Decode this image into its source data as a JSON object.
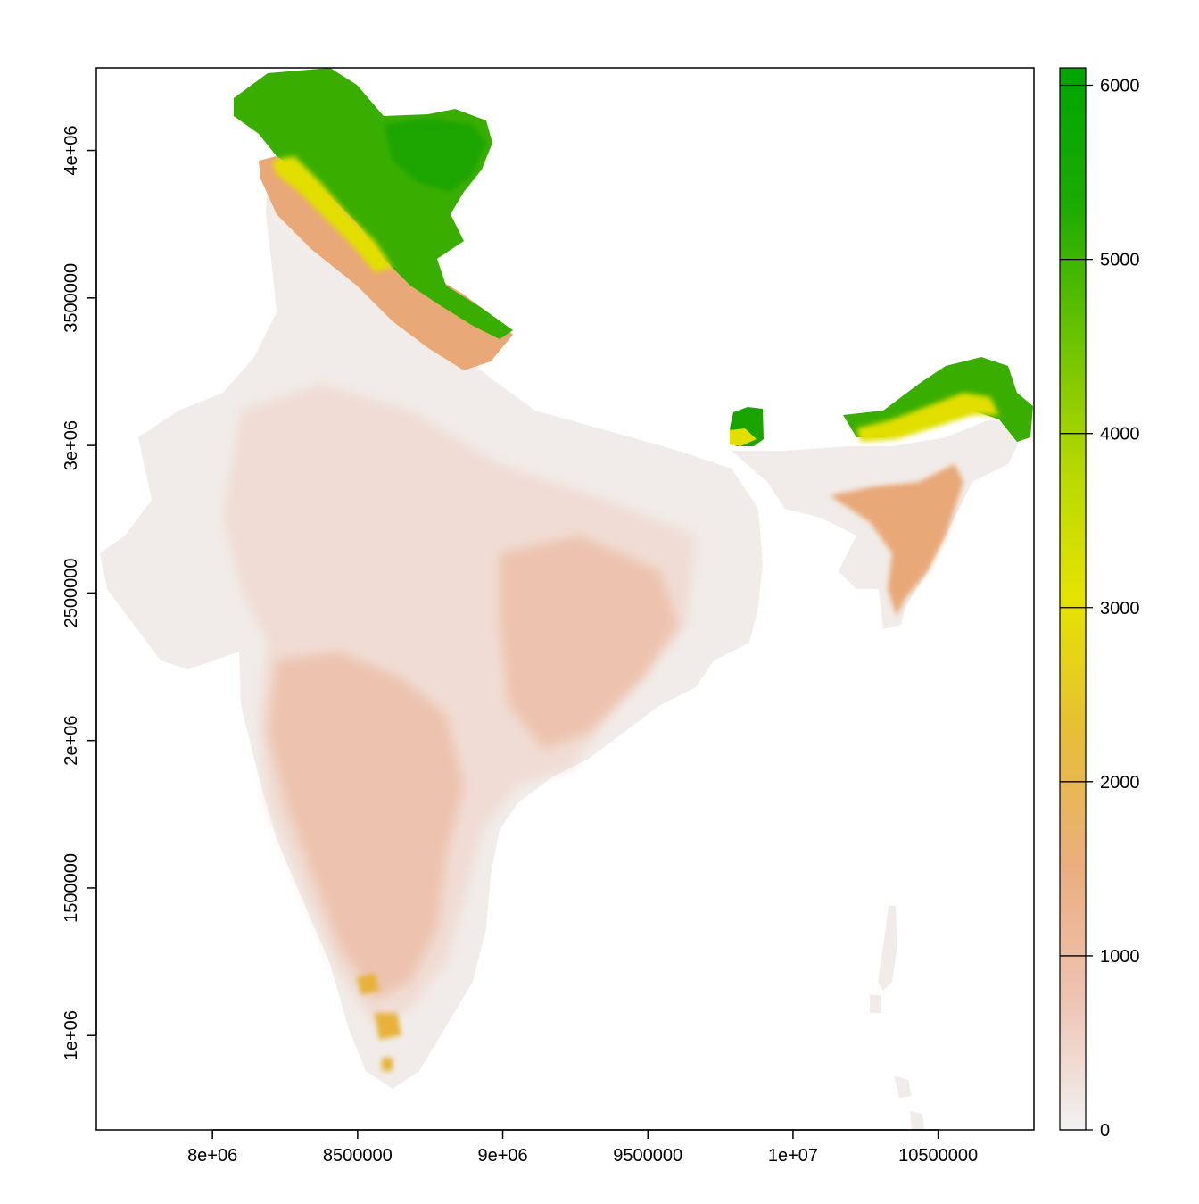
{
  "map": {
    "x_axis": {
      "range": [
        7600000,
        10830000
      ],
      "ticks": [
        {
          "value": 8000000,
          "label": "8e+06"
        },
        {
          "value": 8500000,
          "label": "8500000"
        },
        {
          "value": 9000000,
          "label": "9e+06"
        },
        {
          "value": 9500000,
          "label": "9500000"
        },
        {
          "value": 10000000,
          "label": "1e+07"
        },
        {
          "value": 10500000,
          "label": "10500000"
        }
      ]
    },
    "y_axis": {
      "range": [
        680000,
        4280000
      ],
      "ticks": [
        {
          "value": 1000000,
          "label": "1e+06"
        },
        {
          "value": 1500000,
          "label": "1500000"
        },
        {
          "value": 2000000,
          "label": "2e+06"
        },
        {
          "value": 2500000,
          "label": "2500000"
        },
        {
          "value": 3000000,
          "label": "3e+06"
        },
        {
          "value": 3500000,
          "label": "3500000"
        },
        {
          "value": 4000000,
          "label": "4e+06"
        }
      ]
    },
    "legend": {
      "range": [
        0,
        6100
      ],
      "ticks": [
        {
          "value": 0,
          "label": "0"
        },
        {
          "value": 1000,
          "label": "1000"
        },
        {
          "value": 2000,
          "label": "2000"
        },
        {
          "value": 3000,
          "label": "3000"
        },
        {
          "value": 4000,
          "label": "4000"
        },
        {
          "value": 5000,
          "label": "5000"
        },
        {
          "value": 6000,
          "label": "6000"
        }
      ],
      "colors": [
        "#f2f2f2",
        "#eec3b1",
        "#ebad7e",
        "#e6be36",
        "#e5e400",
        "#b5d800",
        "#68c200",
        "#1aaa00",
        "#00a600"
      ]
    },
    "palette": {
      "low": "#f1ece9",
      "plain": "#f0dcd4",
      "upland": "#edc3af",
      "highland": "#e9a878",
      "peak": "#e6b23a",
      "yellow": "#e2df00",
      "green_light": "#7cc700",
      "green": "#3aae00",
      "green_dark": "#1ba400"
    }
  }
}
